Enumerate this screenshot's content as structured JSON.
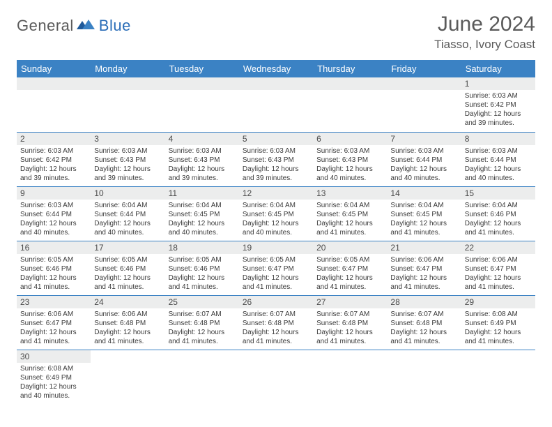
{
  "logo": {
    "text1": "General",
    "text2": "Blue"
  },
  "title": "June 2024",
  "location": "Tiasso, Ivory Coast",
  "colors": {
    "header_bg": "#3b82c4",
    "header_text": "#ffffff",
    "daynum_bg": "#eceded",
    "border": "#3b82c4",
    "logo_gray": "#5a5a5a",
    "logo_blue": "#2a6db8"
  },
  "weekdays": [
    "Sunday",
    "Monday",
    "Tuesday",
    "Wednesday",
    "Thursday",
    "Friday",
    "Saturday"
  ],
  "weeks": [
    [
      {
        "n": "",
        "sr": "",
        "ss": "",
        "dl": ""
      },
      {
        "n": "",
        "sr": "",
        "ss": "",
        "dl": ""
      },
      {
        "n": "",
        "sr": "",
        "ss": "",
        "dl": ""
      },
      {
        "n": "",
        "sr": "",
        "ss": "",
        "dl": ""
      },
      {
        "n": "",
        "sr": "",
        "ss": "",
        "dl": ""
      },
      {
        "n": "",
        "sr": "",
        "ss": "",
        "dl": ""
      },
      {
        "n": "1",
        "sr": "Sunrise: 6:03 AM",
        "ss": "Sunset: 6:42 PM",
        "dl": "Daylight: 12 hours and 39 minutes."
      }
    ],
    [
      {
        "n": "2",
        "sr": "Sunrise: 6:03 AM",
        "ss": "Sunset: 6:42 PM",
        "dl": "Daylight: 12 hours and 39 minutes."
      },
      {
        "n": "3",
        "sr": "Sunrise: 6:03 AM",
        "ss": "Sunset: 6:43 PM",
        "dl": "Daylight: 12 hours and 39 minutes."
      },
      {
        "n": "4",
        "sr": "Sunrise: 6:03 AM",
        "ss": "Sunset: 6:43 PM",
        "dl": "Daylight: 12 hours and 39 minutes."
      },
      {
        "n": "5",
        "sr": "Sunrise: 6:03 AM",
        "ss": "Sunset: 6:43 PM",
        "dl": "Daylight: 12 hours and 39 minutes."
      },
      {
        "n": "6",
        "sr": "Sunrise: 6:03 AM",
        "ss": "Sunset: 6:43 PM",
        "dl": "Daylight: 12 hours and 40 minutes."
      },
      {
        "n": "7",
        "sr": "Sunrise: 6:03 AM",
        "ss": "Sunset: 6:44 PM",
        "dl": "Daylight: 12 hours and 40 minutes."
      },
      {
        "n": "8",
        "sr": "Sunrise: 6:03 AM",
        "ss": "Sunset: 6:44 PM",
        "dl": "Daylight: 12 hours and 40 minutes."
      }
    ],
    [
      {
        "n": "9",
        "sr": "Sunrise: 6:03 AM",
        "ss": "Sunset: 6:44 PM",
        "dl": "Daylight: 12 hours and 40 minutes."
      },
      {
        "n": "10",
        "sr": "Sunrise: 6:04 AM",
        "ss": "Sunset: 6:44 PM",
        "dl": "Daylight: 12 hours and 40 minutes."
      },
      {
        "n": "11",
        "sr": "Sunrise: 6:04 AM",
        "ss": "Sunset: 6:45 PM",
        "dl": "Daylight: 12 hours and 40 minutes."
      },
      {
        "n": "12",
        "sr": "Sunrise: 6:04 AM",
        "ss": "Sunset: 6:45 PM",
        "dl": "Daylight: 12 hours and 40 minutes."
      },
      {
        "n": "13",
        "sr": "Sunrise: 6:04 AM",
        "ss": "Sunset: 6:45 PM",
        "dl": "Daylight: 12 hours and 41 minutes."
      },
      {
        "n": "14",
        "sr": "Sunrise: 6:04 AM",
        "ss": "Sunset: 6:45 PM",
        "dl": "Daylight: 12 hours and 41 minutes."
      },
      {
        "n": "15",
        "sr": "Sunrise: 6:04 AM",
        "ss": "Sunset: 6:46 PM",
        "dl": "Daylight: 12 hours and 41 minutes."
      }
    ],
    [
      {
        "n": "16",
        "sr": "Sunrise: 6:05 AM",
        "ss": "Sunset: 6:46 PM",
        "dl": "Daylight: 12 hours and 41 minutes."
      },
      {
        "n": "17",
        "sr": "Sunrise: 6:05 AM",
        "ss": "Sunset: 6:46 PM",
        "dl": "Daylight: 12 hours and 41 minutes."
      },
      {
        "n": "18",
        "sr": "Sunrise: 6:05 AM",
        "ss": "Sunset: 6:46 PM",
        "dl": "Daylight: 12 hours and 41 minutes."
      },
      {
        "n": "19",
        "sr": "Sunrise: 6:05 AM",
        "ss": "Sunset: 6:47 PM",
        "dl": "Daylight: 12 hours and 41 minutes."
      },
      {
        "n": "20",
        "sr": "Sunrise: 6:05 AM",
        "ss": "Sunset: 6:47 PM",
        "dl": "Daylight: 12 hours and 41 minutes."
      },
      {
        "n": "21",
        "sr": "Sunrise: 6:06 AM",
        "ss": "Sunset: 6:47 PM",
        "dl": "Daylight: 12 hours and 41 minutes."
      },
      {
        "n": "22",
        "sr": "Sunrise: 6:06 AM",
        "ss": "Sunset: 6:47 PM",
        "dl": "Daylight: 12 hours and 41 minutes."
      }
    ],
    [
      {
        "n": "23",
        "sr": "Sunrise: 6:06 AM",
        "ss": "Sunset: 6:47 PM",
        "dl": "Daylight: 12 hours and 41 minutes."
      },
      {
        "n": "24",
        "sr": "Sunrise: 6:06 AM",
        "ss": "Sunset: 6:48 PM",
        "dl": "Daylight: 12 hours and 41 minutes."
      },
      {
        "n": "25",
        "sr": "Sunrise: 6:07 AM",
        "ss": "Sunset: 6:48 PM",
        "dl": "Daylight: 12 hours and 41 minutes."
      },
      {
        "n": "26",
        "sr": "Sunrise: 6:07 AM",
        "ss": "Sunset: 6:48 PM",
        "dl": "Daylight: 12 hours and 41 minutes."
      },
      {
        "n": "27",
        "sr": "Sunrise: 6:07 AM",
        "ss": "Sunset: 6:48 PM",
        "dl": "Daylight: 12 hours and 41 minutes."
      },
      {
        "n": "28",
        "sr": "Sunrise: 6:07 AM",
        "ss": "Sunset: 6:48 PM",
        "dl": "Daylight: 12 hours and 41 minutes."
      },
      {
        "n": "29",
        "sr": "Sunrise: 6:08 AM",
        "ss": "Sunset: 6:49 PM",
        "dl": "Daylight: 12 hours and 41 minutes."
      }
    ],
    [
      {
        "n": "30",
        "sr": "Sunrise: 6:08 AM",
        "ss": "Sunset: 6:49 PM",
        "dl": "Daylight: 12 hours and 40 minutes."
      },
      {
        "n": "",
        "sr": "",
        "ss": "",
        "dl": ""
      },
      {
        "n": "",
        "sr": "",
        "ss": "",
        "dl": ""
      },
      {
        "n": "",
        "sr": "",
        "ss": "",
        "dl": ""
      },
      {
        "n": "",
        "sr": "",
        "ss": "",
        "dl": ""
      },
      {
        "n": "",
        "sr": "",
        "ss": "",
        "dl": ""
      },
      {
        "n": "",
        "sr": "",
        "ss": "",
        "dl": ""
      }
    ]
  ]
}
